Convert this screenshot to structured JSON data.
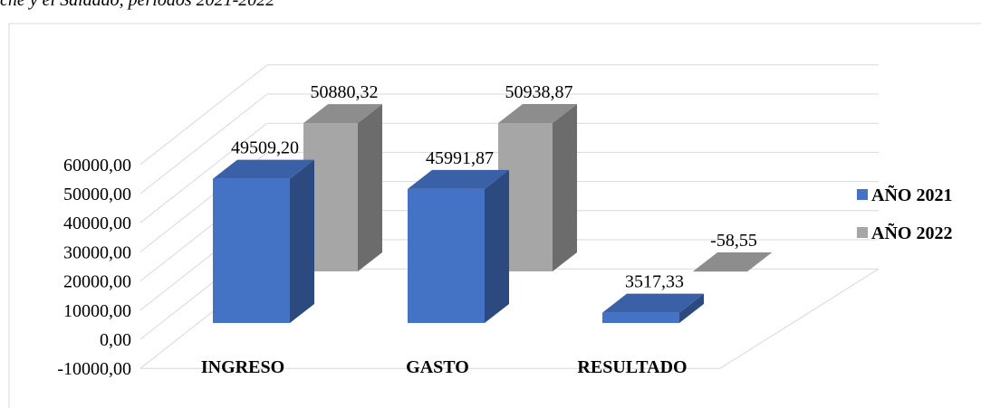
{
  "chart_data": {
    "type": "bar3d",
    "title": "che y el Saldado, periodos 2021-2022",
    "categories": [
      "INGRESO",
      "GASTO",
      "RESULTADO"
    ],
    "series": [
      {
        "name": "AÑO 2021",
        "color": "#4472c4",
        "values": [
          49509.2,
          45991.87,
          3517.33
        ],
        "value_labels": [
          "49509,20",
          "45991,87",
          "3517,33"
        ]
      },
      {
        "name": "AÑO 2022",
        "color": "#a6a6a6",
        "values": [
          50880.32,
          50938.87,
          -58.55
        ],
        "value_labels": [
          "50880,32",
          "50938,87",
          "-58,55"
        ]
      }
    ],
    "ylim": [
      -10000,
      60000
    ],
    "yticks": [
      {
        "value": -10000,
        "label": "-10000,00"
      },
      {
        "value": 0,
        "label": "0,00"
      },
      {
        "value": 10000,
        "label": "10000,00"
      },
      {
        "value": 20000,
        "label": "20000,00"
      },
      {
        "value": 30000,
        "label": "30000,00"
      },
      {
        "value": 40000,
        "label": "40000,00"
      },
      {
        "value": 50000,
        "label": "50000,00"
      },
      {
        "value": 60000,
        "label": "60000,00"
      }
    ],
    "grid": true,
    "legend": "right"
  }
}
